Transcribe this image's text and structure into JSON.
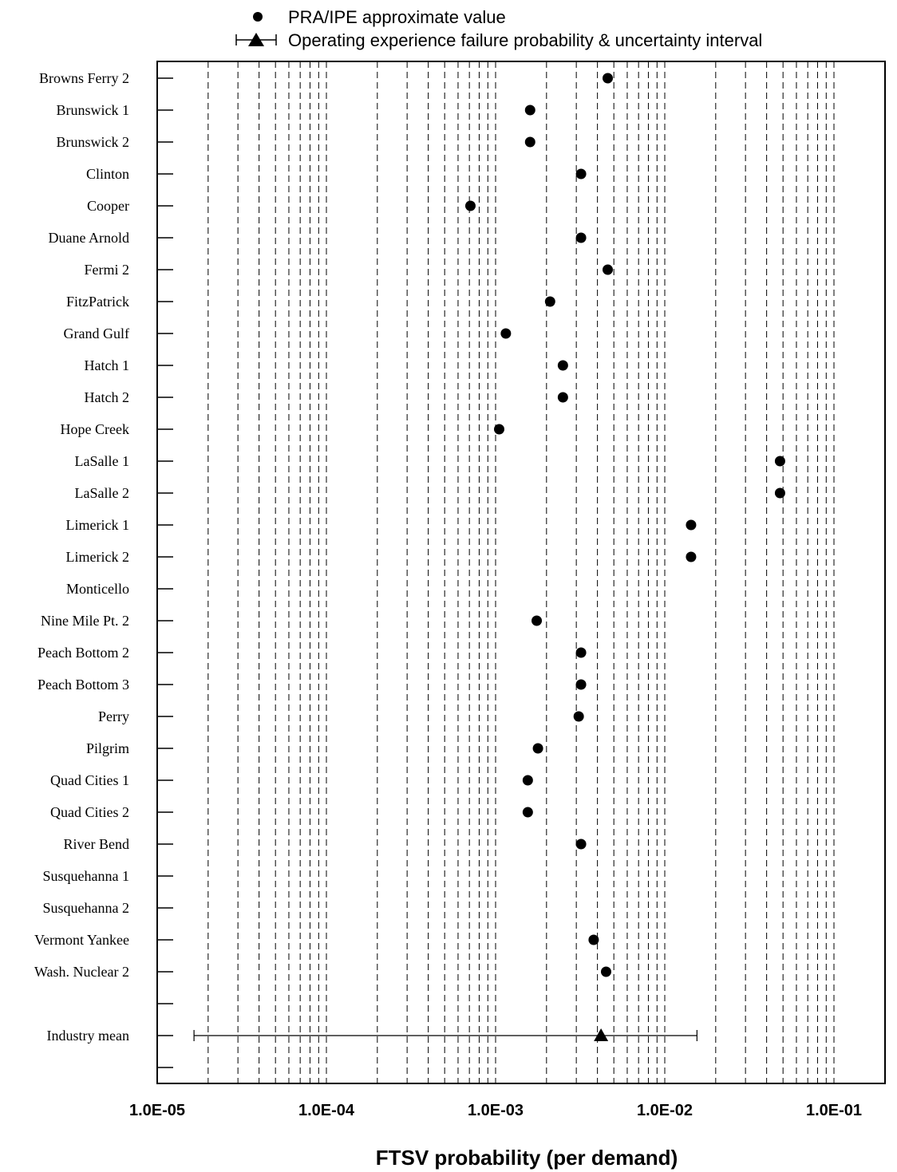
{
  "chart_data": {
    "type": "scatter",
    "xscale": "log",
    "xlim": [
      1e-05,
      0.25
    ],
    "xlabel": "FTSV probability (per demand)",
    "x_tick_labels": [
      "1.0E-05",
      "1.0E-04",
      "1.0E-03",
      "1.0E-02",
      "1.0E-01"
    ],
    "x_tick_values": [
      1e-05,
      0.0001,
      0.001,
      0.01,
      0.1
    ],
    "grid": "vertical dashed at each minor and major decade tick",
    "legend": {
      "placement": "top",
      "entries": [
        {
          "marker": "circle",
          "label": "PRA/IPE approximate value"
        },
        {
          "marker": "triangle-with-interval",
          "label": "Operating experience failure probability & uncertainty interval"
        }
      ]
    },
    "categories": [
      "Browns Ferry 2",
      "Brunswick 1",
      "Brunswick 2",
      "Clinton",
      "Cooper",
      "Duane Arnold",
      "Fermi 2",
      "FitzPatrick",
      "Grand Gulf",
      "Hatch 1",
      "Hatch 2",
      "Hope Creek",
      "LaSalle 1",
      "LaSalle 2",
      "Limerick 1",
      "Limerick 2",
      "Monticello",
      "Nine Mile Pt. 2",
      "Peach Bottom 2",
      "Peach Bottom 3",
      "Perry",
      "Pilgrim",
      "Quad Cities 1",
      "Quad Cities 2",
      "River Bend",
      "Susquehanna 1",
      "Susquehanna 2",
      "Vermont Yankee",
      "Wash. Nuclear 2",
      "",
      "Industry mean",
      ""
    ],
    "series": [
      {
        "name": "PRA/IPE approximate value",
        "marker": "circle",
        "values": [
          0.0046,
          0.0016,
          0.0016,
          0.0032,
          0.00071,
          0.0032,
          0.0046,
          0.0021,
          0.00115,
          0.0025,
          0.0025,
          0.00105,
          0.048,
          0.048,
          0.0143,
          0.0143,
          null,
          0.00175,
          0.0032,
          0.0032,
          0.0031,
          0.00178,
          0.00155,
          0.00155,
          0.0032,
          null,
          null,
          0.0038,
          0.0045,
          null,
          null,
          null
        ]
      },
      {
        "name": "Operating experience failure probability & uncertainty interval",
        "marker": "triangle",
        "points": [
          {
            "category": "Industry mean",
            "value": 0.0042,
            "lower": 1.65e-05,
            "upper": 0.0155
          }
        ]
      }
    ],
    "colors": {
      "marker": "#000000",
      "grid": "#000000",
      "background": "#ffffff"
    }
  }
}
